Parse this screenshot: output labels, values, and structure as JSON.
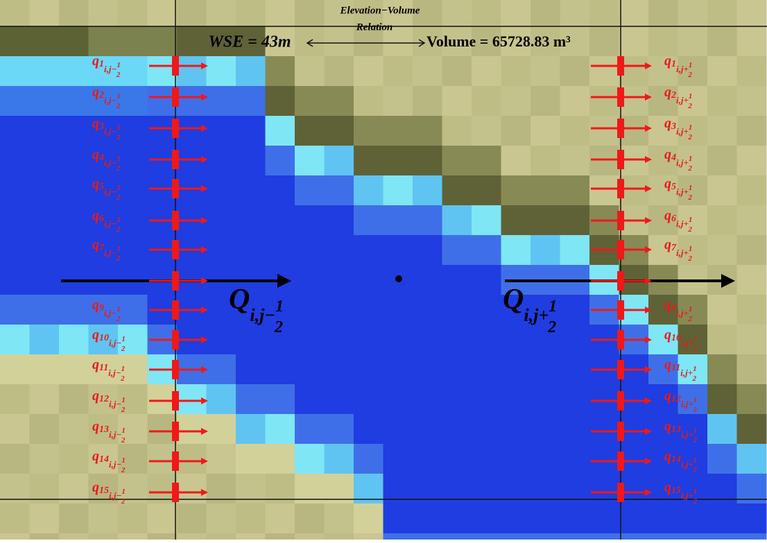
{
  "header": {
    "line1": "Elevation−Volume",
    "line2": "Relation",
    "wse": "WSE = 43m",
    "volume": "Volume = 65728.83 m³"
  },
  "left": {
    "symbol": "q",
    "subscript": "i,j−",
    "numerator": "1",
    "denominator": "2",
    "indices": [
      "1",
      "2",
      "3",
      "4",
      "5",
      "6",
      "7",
      null,
      "9",
      "10",
      "11",
      "12",
      "13",
      "14",
      "15"
    ]
  },
  "right": {
    "symbol": "q",
    "subscript": "i,j+",
    "numerator": "1",
    "denominator": "2",
    "indices": [
      "1",
      "2",
      "3",
      "4",
      "5",
      "6",
      "7",
      null,
      "9",
      "10",
      "11",
      "12",
      "13",
      "14",
      "15"
    ]
  },
  "left_total": {
    "symbol": "Q",
    "subscript": "i,j−",
    "numerator": "1",
    "denominator": "2"
  },
  "right_total": {
    "symbol": "Q",
    "subscript": "i,j+",
    "numerator": "1",
    "denominator": "2"
  }
}
